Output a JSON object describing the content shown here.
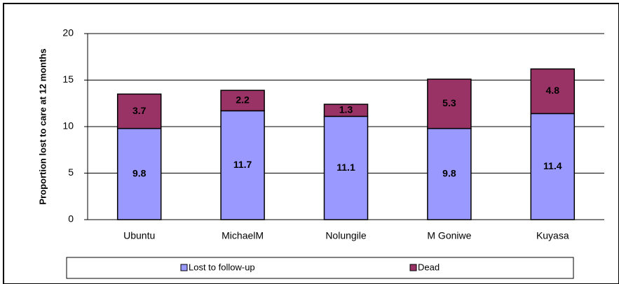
{
  "chart_data": {
    "type": "stacked_bar",
    "y_label": "Proportion lost to care at 12 months",
    "categories": [
      "Ubuntu",
      "MichaelM",
      "Nolungile",
      "M Goniwe",
      "Kuyasa"
    ],
    "series": [
      {
        "name": "Lost to follow-up",
        "color": "#9999ff",
        "values": [
          9.8,
          11.7,
          11.1,
          9.8,
          11.4
        ]
      },
      {
        "name": "Dead",
        "color": "#993366",
        "values": [
          3.7,
          2.2,
          1.3,
          5.3,
          4.8
        ]
      }
    ],
    "ylim": [
      0,
      20
    ],
    "yticks": [
      0,
      5,
      10,
      15,
      20
    ],
    "grid": true
  }
}
